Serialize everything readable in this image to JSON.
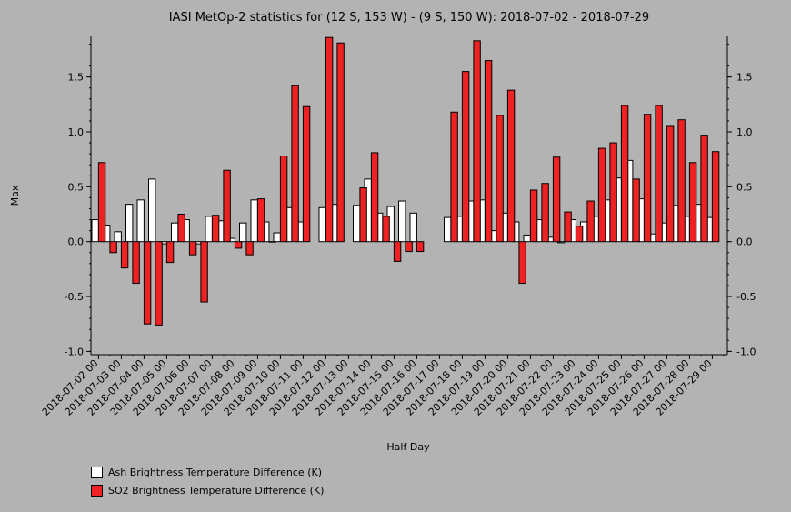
{
  "chart_data": {
    "type": "bar",
    "title": "IASI MetOp-2 statistics for (12 S, 153 W) - (9 S, 150 W): 2018-07-02 - 2018-07-29",
    "xlabel": "Half Day",
    "ylabel": "Max",
    "ylim": [
      -1.03,
      1.87
    ],
    "yticks": [
      -1.0,
      -0.5,
      0.0,
      0.5,
      1.0,
      1.5
    ],
    "ytick_labels": [
      "-1.0",
      "-0.5",
      "0.0",
      "0.5",
      "1.0",
      "1.5"
    ],
    "grid": false,
    "legend_position": "bottom-left",
    "categories": [
      "2018-07-02 00",
      "2018-07-02 12",
      "2018-07-03 00",
      "2018-07-03 12",
      "2018-07-04 00",
      "2018-07-04 12",
      "2018-07-05 00",
      "2018-07-05 12",
      "2018-07-06 00",
      "2018-07-06 12",
      "2018-07-07 00",
      "2018-07-07 12",
      "2018-07-08 00",
      "2018-07-08 12",
      "2018-07-09 00",
      "2018-07-09 12",
      "2018-07-10 00",
      "2018-07-10 12",
      "2018-07-11 00",
      "2018-07-11 12",
      "2018-07-12 00",
      "2018-07-12 12",
      "2018-07-13 00",
      "2018-07-13 12",
      "2018-07-14 00",
      "2018-07-14 12",
      "2018-07-15 00",
      "2018-07-15 12",
      "2018-07-16 00",
      "2018-07-16 12",
      "2018-07-17 00",
      "2018-07-17 12",
      "2018-07-18 00",
      "2018-07-18 12",
      "2018-07-19 00",
      "2018-07-19 12",
      "2018-07-20 00",
      "2018-07-20 12",
      "2018-07-21 00",
      "2018-07-21 12",
      "2018-07-22 00",
      "2018-07-22 12",
      "2018-07-23 00",
      "2018-07-23 12",
      "2018-07-24 00",
      "2018-07-24 12",
      "2018-07-25 00",
      "2018-07-25 12",
      "2018-07-26 00",
      "2018-07-26 12",
      "2018-07-27 00",
      "2018-07-27 12",
      "2018-07-28 00",
      "2018-07-28 12",
      "2018-07-29 00",
      "2018-07-29 12"
    ],
    "x_tick_labels": [
      "2018-07-02 00",
      "2018-07-03 00",
      "2018-07-04 00",
      "2018-07-05 00",
      "2018-07-06 00",
      "2018-07-07 00",
      "2018-07-08 00",
      "2018-07-09 00",
      "2018-07-10 00",
      "2018-07-11 00",
      "2018-07-12 00",
      "2018-07-13 00",
      "2018-07-14 00",
      "2018-07-15 00",
      "2018-07-16 00",
      "2018-07-17 00",
      "2018-07-18 00",
      "2018-07-19 00",
      "2018-07-20 00",
      "2018-07-21 00",
      "2018-07-22 00",
      "2018-07-23 00",
      "2018-07-24 00",
      "2018-07-25 00",
      "2018-07-26 00",
      "2018-07-27 00",
      "2018-07-28 00",
      "2018-07-29 00"
    ],
    "series": [
      {
        "name": "Ash Brightness Temperature Difference (K)",
        "color": "#ffffff",
        "values": [
          0.2,
          0.15,
          0.09,
          0.34,
          0.38,
          0.57,
          -0.02,
          0.17,
          0.2,
          -0.02,
          0.23,
          0.19,
          0.03,
          0.17,
          0.38,
          0.18,
          0.08,
          0.31,
          0.18,
          null,
          0.31,
          0.34,
          null,
          0.33,
          0.57,
          0.26,
          0.32,
          0.37,
          0.26,
          null,
          null,
          0.22,
          0.23,
          0.37,
          0.38,
          0.1,
          0.26,
          0.18,
          0.06,
          0.2,
          0.04,
          -0.01,
          0.2,
          0.18,
          0.23,
          0.38,
          0.58,
          0.74,
          0.39,
          0.07,
          0.17,
          0.33,
          0.23,
          0.34,
          0.22,
          null
        ]
      },
      {
        "name": "SO2 Brightness Temperature Difference (K)",
        "color": "#ee2222",
        "values": [
          0.72,
          -0.1,
          -0.24,
          -0.38,
          -0.75,
          -0.76,
          -0.19,
          0.25,
          -0.12,
          -0.55,
          0.24,
          0.65,
          -0.06,
          -0.12,
          0.39,
          0.0,
          0.78,
          1.42,
          1.23,
          null,
          1.86,
          1.81,
          null,
          0.49,
          0.81,
          0.23,
          -0.18,
          -0.09,
          -0.09,
          null,
          null,
          1.18,
          1.55,
          1.83,
          1.65,
          1.15,
          1.38,
          -0.38,
          0.47,
          0.53,
          0.77,
          0.27,
          0.14,
          0.37,
          0.85,
          0.9,
          1.24,
          0.57,
          1.16,
          1.24,
          1.05,
          1.11,
          0.72,
          0.97,
          0.82,
          null
        ]
      }
    ]
  }
}
